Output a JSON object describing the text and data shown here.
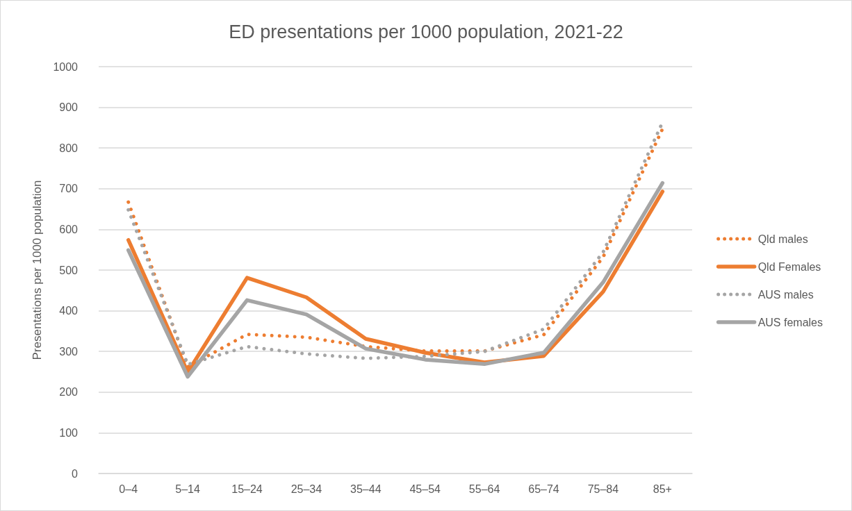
{
  "chart_data": {
    "type": "line",
    "title": "ED presentations per 1000 population, 2021-22",
    "ylabel": "Presentations per 1000 population",
    "categories": [
      "0–4",
      "5–14",
      "15–24",
      "25–34",
      "35–44",
      "45–54",
      "55–64",
      "65–74",
      "75–84",
      "85+"
    ],
    "series": [
      {
        "name": "Qld males",
        "color": "#ed7d31",
        "line_style": "dotted",
        "values": [
          667,
          262,
          342,
          335,
          312,
          301,
          301,
          341,
          532,
          847
        ]
      },
      {
        "name": "Qld Females",
        "color": "#ed7d31",
        "line_style": "solid",
        "values": [
          574,
          249,
          481,
          433,
          331,
          297,
          273,
          289,
          447,
          693
        ]
      },
      {
        "name": "AUS males",
        "color": "#a5a5a5",
        "line_style": "dotted",
        "values": [
          648,
          268,
          312,
          294,
          283,
          288,
          300,
          355,
          544,
          863
        ]
      },
      {
        "name": "AUS females",
        "color": "#a5a5a5",
        "line_style": "solid",
        "values": [
          549,
          238,
          426,
          391,
          307,
          280,
          269,
          297,
          470,
          714
        ]
      }
    ],
    "ylim": [
      0,
      1000
    ],
    "yticks": [
      0,
      100,
      200,
      300,
      400,
      500,
      600,
      700,
      800,
      900,
      1000
    ],
    "grid": "y",
    "legend": "right",
    "marker": "none"
  }
}
